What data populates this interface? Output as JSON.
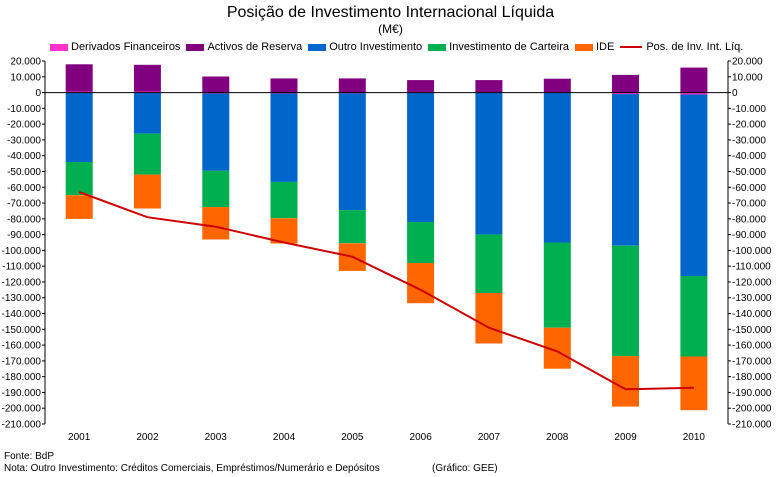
{
  "chart_data": {
    "type": "bar",
    "stacked": true,
    "title": "Posição de Investimento Internacional Líquida",
    "subtitle": "(M€)",
    "categories": [
      "2001",
      "2002",
      "2003",
      "2004",
      "2005",
      "2006",
      "2007",
      "2008",
      "2009",
      "2010"
    ],
    "series": [
      {
        "name": "Derivados Financeiros",
        "color": "#ff33cc",
        "values": [
          600,
          600,
          -600,
          -600,
          -500,
          400,
          300,
          300,
          -1000,
          -1200
        ]
      },
      {
        "name": "Activos de Reserva",
        "color": "#800080",
        "values": [
          17300,
          17000,
          10200,
          9000,
          9000,
          7500,
          7600,
          8500,
          11200,
          15800
        ]
      },
      {
        "name": "Outro Investimento",
        "color": "#0066cc",
        "values": [
          -44000,
          -26000,
          -49000,
          -56000,
          -74000,
          -82000,
          -90000,
          -95000,
          -96000,
          -115000
        ]
      },
      {
        "name": "Investimento de Carteira",
        "color": "#00b050",
        "values": [
          -21000,
          -26000,
          -23000,
          -23000,
          -21000,
          -26000,
          -37000,
          -54000,
          -70000,
          -51000
        ]
      },
      {
        "name": "IDE",
        "color": "#ff6600",
        "values": [
          -15000,
          -21500,
          -20500,
          -16000,
          -17500,
          -25500,
          -32000,
          -26000,
          -32000,
          -34000
        ]
      }
    ],
    "line": {
      "name": "Pos. de Inv. Int. Líq.",
      "color": "#cc0000",
      "values": [
        -63000,
        -79000,
        -85000,
        -95000,
        -104000,
        -125000,
        -149000,
        -164000,
        -188000,
        -187000
      ]
    },
    "ylim": [
      -210000,
      20000
    ],
    "ytick_step": 10000,
    "ytick_labels": [
      "20.000",
      "10.000",
      "0",
      "-10.000",
      "-20.000",
      "-30.000",
      "-40.000",
      "-50.000",
      "-60.000",
      "-70.000",
      "-80.000",
      "-90.000",
      "-100.000",
      "-110.000",
      "-120.000",
      "-130.000",
      "-140.000",
      "-150.000",
      "-160.000",
      "-170.000",
      "-180.000",
      "-190.000",
      "-200.000",
      "-210.000"
    ],
    "ytick_values": [
      20000,
      10000,
      0,
      -10000,
      -20000,
      -30000,
      -40000,
      -50000,
      -60000,
      -70000,
      -80000,
      -90000,
      -100000,
      -110000,
      -120000,
      -130000,
      -140000,
      -150000,
      -160000,
      -170000,
      -180000,
      -190000,
      -200000,
      -210000
    ],
    "grid": false,
    "legend_position": "top"
  },
  "footer": {
    "source": "Fonte: BdP",
    "note": "Nota: Outro Investimento: Créditos Comerciais, Empréstimos/Numerário e Depósitos",
    "credit": "(Gráfico: GEE)"
  }
}
